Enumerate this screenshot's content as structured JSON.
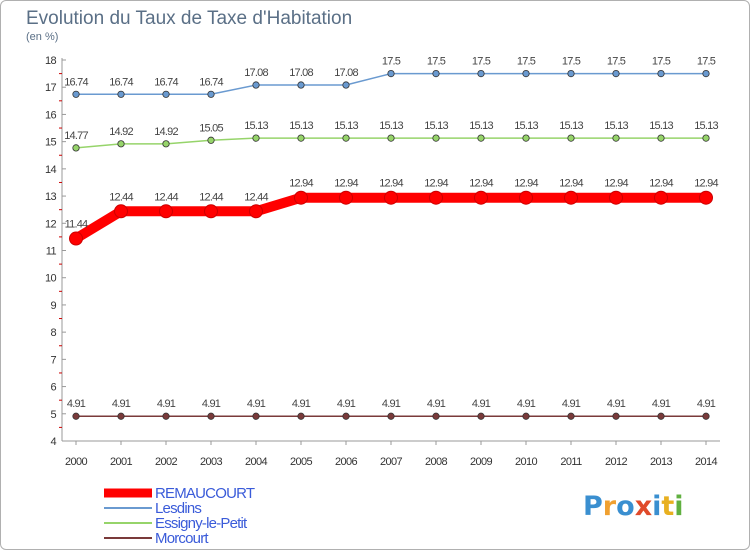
{
  "chart_data": {
    "type": "line",
    "title": "Evolution du Taux de Taxe d'Habitation",
    "subtitle": "(en %)",
    "xlabel": "",
    "ylabel": "(en %)",
    "categories": [
      "2000",
      "2001",
      "2002",
      "2003",
      "2004",
      "2005",
      "2006",
      "2007",
      "2008",
      "2009",
      "2010",
      "2011",
      "2012",
      "2013",
      "2014"
    ],
    "ylim": [
      4,
      18
    ],
    "yticks": [
      4,
      5,
      6,
      7,
      8,
      9,
      10,
      11,
      12,
      13,
      14,
      15,
      16,
      17,
      18
    ],
    "grid": false,
    "legend_position": "bottom-left",
    "series": [
      {
        "name": "REMAUCOURT",
        "color": "#ff0000",
        "emphasis": true,
        "values": [
          11.44,
          12.44,
          12.44,
          12.44,
          12.44,
          12.94,
          12.94,
          12.94,
          12.94,
          12.94,
          12.94,
          12.94,
          12.94,
          12.94,
          12.94
        ],
        "labels": [
          "11.44",
          "12.44",
          "12.44",
          "12.44",
          "12.44",
          "12.94",
          "12.94",
          "12.94",
          "12.94",
          "12.94",
          "12.94",
          "12.94",
          "12.94",
          "12.94",
          "12.94"
        ]
      },
      {
        "name": "Lesdins",
        "color": "#6a9ad0",
        "emphasis": false,
        "values": [
          16.74,
          16.74,
          16.74,
          16.74,
          17.08,
          17.08,
          17.08,
          17.5,
          17.5,
          17.5,
          17.5,
          17.5,
          17.5,
          17.5,
          17.5
        ],
        "labels": [
          "16.74",
          "16.74",
          "16.74",
          "16.74",
          "17.08",
          "17.08",
          "17.08",
          "17.5",
          "17.5",
          "17.5",
          "17.5",
          "17.5",
          "17.5",
          "17.5",
          "17.5"
        ]
      },
      {
        "name": "Essigny-le-Petit",
        "color": "#96d46a",
        "emphasis": false,
        "values": [
          14.77,
          14.92,
          14.92,
          15.05,
          15.13,
          15.13,
          15.13,
          15.13,
          15.13,
          15.13,
          15.13,
          15.13,
          15.13,
          15.13,
          15.13
        ],
        "labels": [
          "14.77",
          "14.92",
          "14.92",
          "15.05",
          "15.13",
          "15.13",
          "15.13",
          "15.13",
          "15.13",
          "15.13",
          "15.13",
          "15.13",
          "15.13",
          "15.13",
          "15.13"
        ]
      },
      {
        "name": "Morcourt",
        "color": "#7a3a3a",
        "emphasis": false,
        "values": [
          4.91,
          4.91,
          4.91,
          4.91,
          4.91,
          4.91,
          4.91,
          4.91,
          4.91,
          4.91,
          4.91,
          4.91,
          4.91,
          4.91,
          4.91
        ],
        "labels": [
          "4.91",
          "4.91",
          "4.91",
          "4.91",
          "4.91",
          "4.91",
          "4.91",
          "4.91",
          "4.91",
          "4.91",
          "4.91",
          "4.91",
          "4.91",
          "4.91",
          "4.91"
        ]
      }
    ]
  },
  "branding": {
    "logo_text": "Proxiti",
    "logo_letters": [
      "P",
      "r",
      "o",
      "x",
      "i",
      "t",
      "i"
    ],
    "logo_colors": [
      "#3a8fd0",
      "#f0a030",
      "#3a8fd0",
      "#e04a2a",
      "#3a8fd0",
      "#e8b020",
      "#60b040"
    ]
  }
}
